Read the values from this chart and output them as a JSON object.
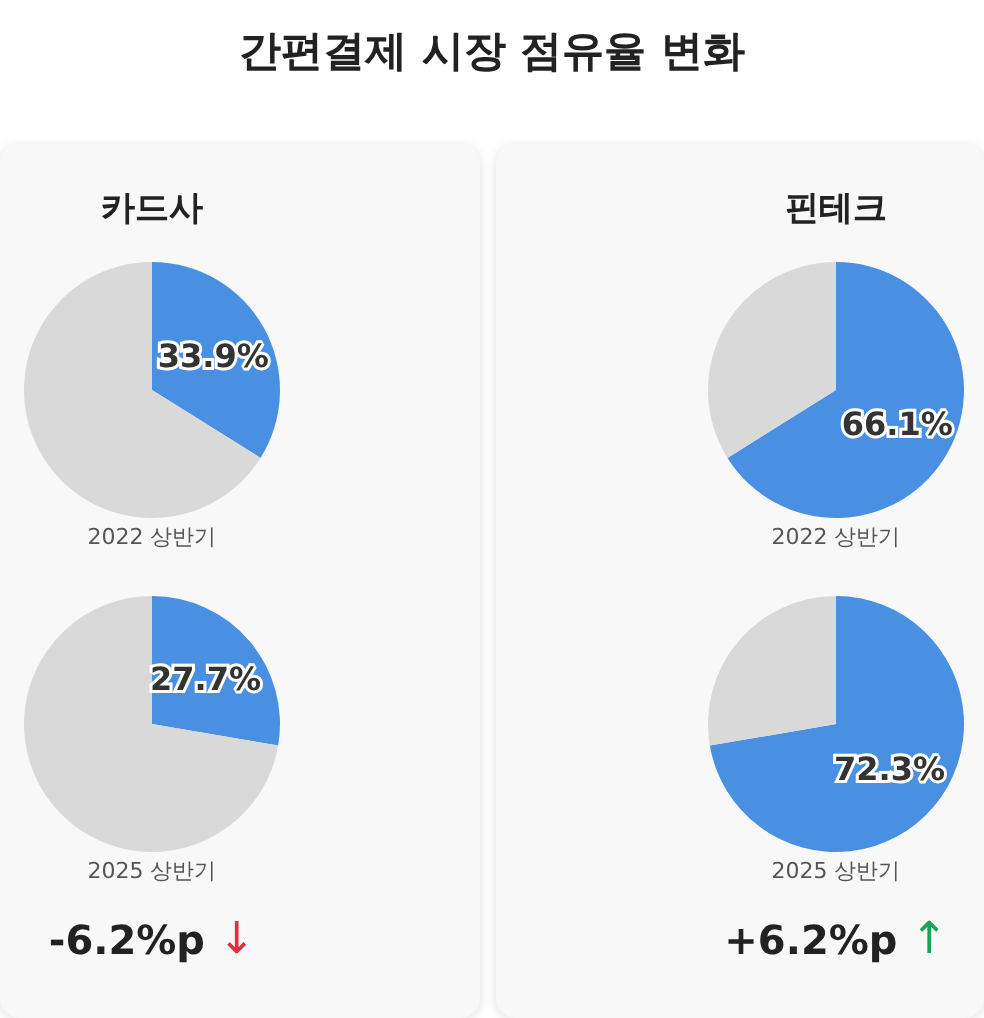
{
  "chart_data": [
    {
      "type": "other",
      "title": "간편결제 시장 점유율 변화"
    },
    {
      "type": "pie",
      "title": "카드사",
      "xlabel": "2022 상반기",
      "categories": [
        null,
        null
      ],
      "values": [
        33.9,
        66.1
      ],
      "colors": [
        "#4a90e2",
        "#d9d9d9"
      ],
      "value_labels": [
        "33.9%",
        null
      ]
    },
    {
      "type": "pie",
      "xlabel": "2025 상반기",
      "categories": [
        null,
        null
      ],
      "values": [
        27.7,
        72.3
      ],
      "colors": [
        "#4a90e2",
        "#d9d9d9"
      ],
      "value_labels": [
        "27.7%",
        null
      ],
      "annotations": [
        "-6.2%p ↓"
      ]
    },
    {
      "type": "pie",
      "title": "핀테크",
      "xlabel": "2022 상반기",
      "categories": [
        null,
        null
      ],
      "values": [
        66.1,
        33.9
      ],
      "colors": [
        "#4a90e2",
        "#d9d9d9"
      ],
      "value_labels": [
        "66.1%",
        null
      ]
    },
    {
      "type": "pie",
      "xlabel": "2025 상반기",
      "categories": [
        null,
        null
      ],
      "values": [
        72.3,
        27.7
      ],
      "colors": [
        "#4a90e2",
        "#d9d9d9"
      ],
      "value_labels": [
        "72.3%",
        null
      ],
      "annotations": [
        "+6.2%p ↑"
      ]
    }
  ]
}
